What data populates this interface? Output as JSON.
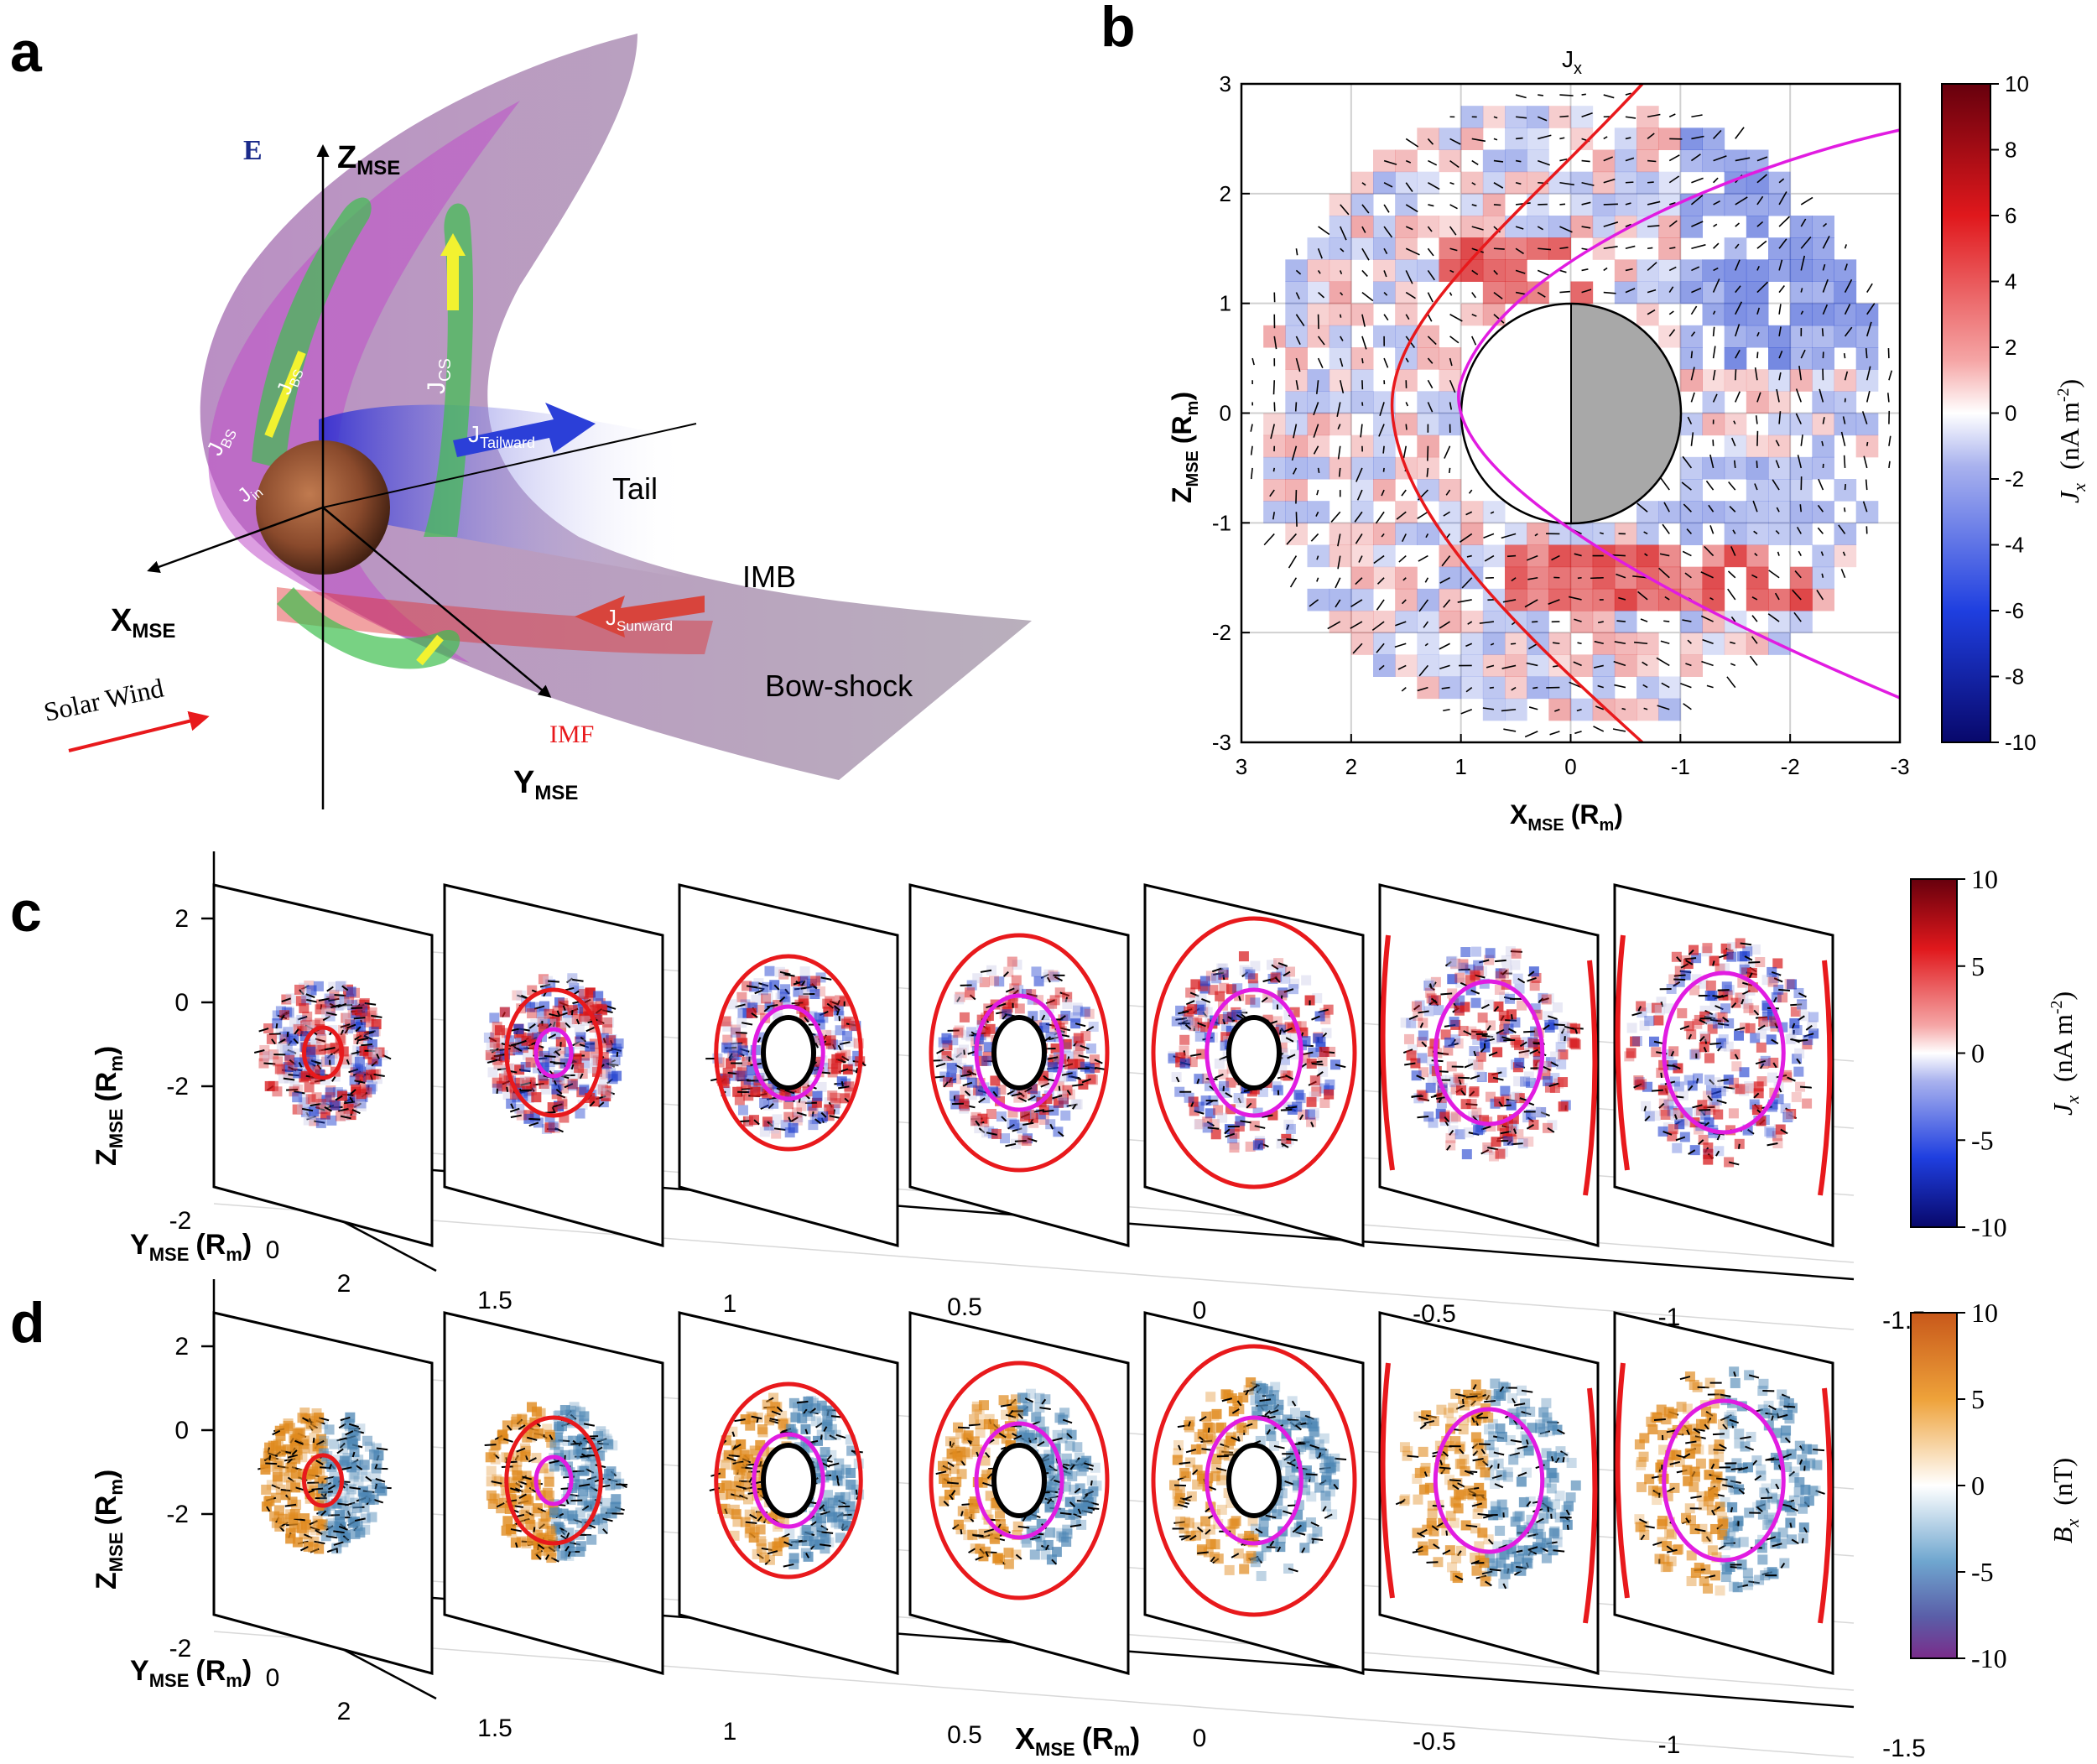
{
  "panel_letters": {
    "a": "a",
    "b": "b",
    "c": "c",
    "d": "d"
  },
  "panel_a": {
    "axis_z": "Z",
    "axis_z_sub": "MSE",
    "axis_x": "X",
    "axis_x_sub": "MSE",
    "axis_y": "Y",
    "axis_y_sub": "MSE",
    "efield": "E",
    "solar_wind": "Solar Wind",
    "imf": "IMF",
    "tail": "Tail",
    "imb": "IMB",
    "bow_shock": "Bow-shock",
    "j_bs": "J",
    "j_bs_sub": "BS",
    "j_cs": "J",
    "j_cs_sub": "CS",
    "j_in": "J",
    "j_in_sub": "in",
    "j_tail": "J",
    "j_tail_sub": "Tailward",
    "j_sun": "J",
    "j_sun_sub": "Sunward"
  },
  "panel_b": {
    "title": "J",
    "title_sub": "x",
    "xlabel": "X",
    "xlabel_sub": "MSE",
    "xlabel_unit": "(R",
    "xlabel_unit_sub": "m",
    "xlabel_close": ")",
    "ylabel": "Z",
    "ylabel_sub": "MSE",
    "ylabel_unit": "(R",
    "ylabel_unit_sub": "m",
    "ylabel_close": ")",
    "xticks": [
      "3",
      "2",
      "1",
      "0",
      "-1",
      "-2",
      "-3"
    ],
    "yticks": [
      "3",
      "2",
      "1",
      "0",
      "-1",
      "-2",
      "-3"
    ],
    "colorbar_ticks": [
      "10",
      "8",
      "6",
      "4",
      "2",
      "0",
      "-2",
      "-4",
      "-6",
      "-8",
      "-10"
    ],
    "colorbar_label": "J",
    "colorbar_label_sub": "x",
    "colorbar_unit": "(nA m",
    "colorbar_unit_sup": "-2",
    "colorbar_unit_close": ")"
  },
  "panel_c": {
    "zticks": [
      "2",
      "0",
      "-2"
    ],
    "zlabel": "Z",
    "zlabel_sub": "MSE",
    "zlabel_unit": "(R",
    "zlabel_unit_sub": "m",
    "zlabel_close": ")",
    "yticks": [
      "-2",
      "0",
      "2"
    ],
    "ylabel": "Y",
    "ylabel_sub": "MSE",
    "ylabel_unit": "(R",
    "ylabel_unit_sub": "m",
    "ylabel_close": ")",
    "xticks": [
      "1.5",
      "1",
      "0.5",
      "0",
      "-0.5",
      "-1",
      "-1.5"
    ],
    "colorbar_ticks": [
      "10",
      "5",
      "0",
      "-5",
      "-10"
    ],
    "colorbar_label": "J",
    "colorbar_label_sub": "x",
    "colorbar_unit": "(nA m",
    "colorbar_unit_sup": "-2",
    "colorbar_unit_close": ")"
  },
  "panel_d": {
    "zticks": [
      "2",
      "0",
      "-2"
    ],
    "zlabel": "Z",
    "zlabel_sub": "MSE",
    "zlabel_unit": "(R",
    "zlabel_unit_sub": "m",
    "zlabel_close": ")",
    "yticks": [
      "-2",
      "0",
      "2"
    ],
    "ylabel": "Y",
    "ylabel_sub": "MSE",
    "ylabel_unit": "(R",
    "ylabel_unit_sub": "m",
    "ylabel_close": ")",
    "xticks": [
      "1.5",
      "1",
      "0.5",
      "0",
      "-0.5",
      "-1",
      "-1.5"
    ],
    "xlabel": "X",
    "xlabel_sub": "MSE",
    "xlabel_unit": "(R",
    "xlabel_unit_sub": "m",
    "xlabel_close": ")",
    "colorbar_ticks": [
      "10",
      "5",
      "0",
      "-5",
      "-10"
    ],
    "colorbar_label": "B",
    "colorbar_label_sub": "x",
    "colorbar_unit": "(nT)"
  },
  "colors": {
    "jet_pos": "#d7191c",
    "jet_neg": "#1f3fcf",
    "boundary_red": "#e8191c",
    "boundary_magenta": "#e11ce1",
    "planet_shade": "#a8a8a8",
    "bx_pos": "#e08a1e",
    "bx_neg": "#4e87b5",
    "bx_min": "#7a3a8c"
  }
}
